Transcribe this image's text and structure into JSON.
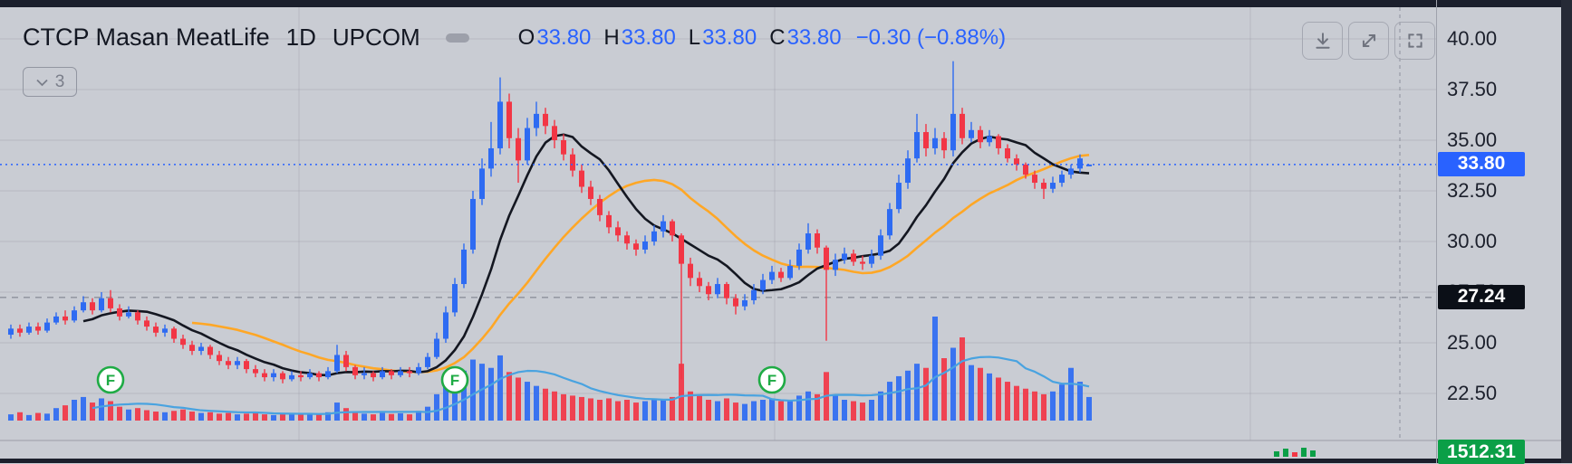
{
  "header": {
    "symbol": "CTCP Masan MeatLife",
    "interval": "1D",
    "exchange": "UPCOM",
    "ohlc": {
      "o_label": "O",
      "o": "33.80",
      "h_label": "H",
      "h": "33.80",
      "l_label": "L",
      "l": "33.80",
      "c_label": "C",
      "c": "33.80",
      "change": "−0.30 (−0.88%)"
    },
    "indicators_toggle": {
      "count": "3"
    }
  },
  "toolbar": {
    "buttons": [
      "download",
      "maximize",
      "fullscreen"
    ]
  },
  "price_axis": {
    "labels": [
      "40.00",
      "37.50",
      "35.00",
      "32.50",
      "30.00",
      "27.50",
      "25.00",
      "22.50"
    ],
    "tick_prices": [
      40,
      37.5,
      35,
      32.5,
      30,
      27.5,
      25,
      22.5
    ],
    "last_price_badge": {
      "text": "33.80",
      "color": "#2962ff"
    },
    "prev_close_badge": {
      "text": "27.24",
      "color": "#0b0f17"
    },
    "volume_badge": {
      "text": "1512.31",
      "color": "#0b9f47"
    }
  },
  "chart_data": {
    "type": "candlestick",
    "title": "CTCP Masan MeatLife 1D UPCOM",
    "ylim": [
      22.3,
      40.2
    ],
    "grid": true,
    "last_price": 33.8,
    "prev_close_level": 27.24,
    "colors": {
      "up": "#2e6bf2",
      "down": "#f23645",
      "ma_fast": "#141721",
      "ma_slow": "#ffa726",
      "vol_ma": "#49a3e0",
      "last_price_line": "#2962ff",
      "prev_close_line": "#8d919c",
      "marker_green": "#1fab45",
      "grid_line": "rgba(140,143,155,0.30)"
    },
    "ma_fast_period": 9,
    "ma_slow_period": 21,
    "vol_ma_period": 10,
    "markers": [
      {
        "index": 11,
        "label": "F"
      },
      {
        "index": 49,
        "label": "F"
      },
      {
        "index": 84,
        "label": "F"
      }
    ],
    "candles": [
      [
        25.4,
        25.9,
        25.2,
        25.7
      ],
      [
        25.7,
        25.9,
        25.3,
        25.5
      ],
      [
        25.5,
        26.0,
        25.4,
        25.8
      ],
      [
        25.8,
        26.0,
        25.4,
        25.6
      ],
      [
        25.6,
        26.2,
        25.5,
        26.0
      ],
      [
        26.0,
        26.5,
        25.9,
        26.3
      ],
      [
        26.3,
        26.6,
        25.9,
        26.1
      ],
      [
        26.1,
        26.8,
        26.0,
        26.6
      ],
      [
        26.6,
        27.3,
        26.5,
        27.0
      ],
      [
        27.0,
        27.2,
        26.4,
        26.6
      ],
      [
        26.6,
        27.5,
        26.5,
        27.2
      ],
      [
        27.2,
        27.6,
        26.5,
        26.7
      ],
      [
        26.7,
        26.9,
        26.1,
        26.3
      ],
      [
        26.3,
        26.8,
        26.2,
        26.5
      ],
      [
        26.5,
        26.6,
        25.9,
        26.1
      ],
      [
        26.1,
        26.3,
        25.6,
        25.8
      ],
      [
        25.8,
        26.0,
        25.3,
        25.5
      ],
      [
        25.5,
        25.9,
        25.3,
        25.7
      ],
      [
        25.7,
        25.8,
        25.0,
        25.2
      ],
      [
        25.2,
        25.4,
        24.7,
        24.9
      ],
      [
        24.9,
        25.1,
        24.4,
        24.6
      ],
      [
        24.6,
        25.0,
        24.4,
        24.8
      ],
      [
        24.8,
        24.9,
        24.2,
        24.4
      ],
      [
        24.4,
        24.6,
        23.9,
        24.1
      ],
      [
        24.1,
        24.3,
        23.7,
        23.9
      ],
      [
        23.9,
        24.3,
        23.7,
        24.1
      ],
      [
        24.1,
        24.2,
        23.5,
        23.7
      ],
      [
        23.7,
        23.9,
        23.3,
        23.5
      ],
      [
        23.5,
        23.7,
        23.1,
        23.3
      ],
      [
        23.3,
        23.7,
        23.1,
        23.5
      ],
      [
        23.5,
        23.6,
        23.0,
        23.2
      ],
      [
        23.2,
        23.6,
        23.1,
        23.4
      ],
      [
        23.4,
        23.6,
        23.1,
        23.3
      ],
      [
        23.3,
        23.7,
        23.2,
        23.5
      ],
      [
        23.5,
        23.6,
        23.1,
        23.3
      ],
      [
        23.3,
        23.8,
        23.2,
        23.6
      ],
      [
        23.6,
        24.9,
        23.5,
        24.4
      ],
      [
        24.4,
        24.6,
        23.6,
        23.8
      ],
      [
        23.8,
        23.9,
        23.2,
        23.4
      ],
      [
        23.4,
        23.8,
        23.2,
        23.5
      ],
      [
        23.5,
        23.6,
        23.1,
        23.3
      ],
      [
        23.3,
        23.8,
        23.2,
        23.6
      ],
      [
        23.6,
        23.7,
        23.2,
        23.4
      ],
      [
        23.4,
        23.8,
        23.3,
        23.6
      ],
      [
        23.6,
        23.8,
        23.3,
        23.5
      ],
      [
        23.5,
        24.0,
        23.4,
        23.8
      ],
      [
        23.8,
        24.5,
        23.7,
        24.3
      ],
      [
        24.3,
        25.5,
        24.2,
        25.2
      ],
      [
        25.2,
        26.8,
        25.0,
        26.5
      ],
      [
        26.5,
        28.2,
        26.3,
        27.9
      ],
      [
        27.9,
        29.9,
        27.7,
        29.6
      ],
      [
        29.6,
        32.5,
        29.4,
        32.1
      ],
      [
        32.1,
        34.1,
        31.8,
        33.6
      ],
      [
        33.6,
        35.9,
        33.2,
        34.6
      ],
      [
        34.6,
        38.1,
        34.3,
        36.9
      ],
      [
        36.9,
        37.3,
        34.6,
        35.1
      ],
      [
        35.1,
        35.6,
        32.9,
        34.0
      ],
      [
        34.0,
        36.1,
        33.8,
        35.6
      ],
      [
        35.6,
        36.9,
        35.2,
        36.3
      ],
      [
        36.3,
        36.6,
        35.3,
        35.7
      ],
      [
        35.7,
        36.0,
        34.6,
        35.0
      ],
      [
        35.0,
        35.3,
        34.0,
        34.3
      ],
      [
        34.3,
        34.6,
        33.2,
        33.5
      ],
      [
        33.5,
        33.8,
        32.4,
        32.7
      ],
      [
        32.7,
        33.0,
        31.8,
        32.1
      ],
      [
        32.1,
        32.3,
        31.0,
        31.3
      ],
      [
        31.3,
        31.5,
        30.4,
        30.7
      ],
      [
        30.7,
        31.0,
        30.0,
        30.3
      ],
      [
        30.3,
        30.5,
        29.6,
        29.9
      ],
      [
        29.9,
        30.1,
        29.3,
        29.6
      ],
      [
        29.6,
        30.3,
        29.4,
        30.0
      ],
      [
        30.0,
        30.8,
        29.8,
        30.5
      ],
      [
        30.5,
        31.3,
        30.2,
        31.0
      ],
      [
        31.0,
        31.1,
        30.0,
        30.3
      ],
      [
        30.3,
        30.4,
        23.2,
        28.9
      ],
      [
        28.9,
        29.2,
        27.8,
        28.2
      ],
      [
        28.2,
        28.5,
        27.5,
        27.8
      ],
      [
        27.8,
        28.0,
        27.1,
        27.4
      ],
      [
        27.4,
        28.2,
        27.2,
        27.9
      ],
      [
        27.9,
        28.0,
        26.9,
        27.2
      ],
      [
        27.2,
        27.4,
        26.4,
        26.8
      ],
      [
        26.8,
        27.4,
        26.6,
        27.1
      ],
      [
        27.1,
        27.9,
        26.9,
        27.6
      ],
      [
        27.6,
        28.4,
        27.4,
        28.1
      ],
      [
        28.1,
        28.8,
        27.9,
        28.5
      ],
      [
        28.5,
        28.7,
        28.0,
        28.2
      ],
      [
        28.2,
        29.1,
        28.1,
        28.8
      ],
      [
        28.8,
        29.9,
        28.6,
        29.6
      ],
      [
        29.6,
        30.9,
        29.4,
        30.4
      ],
      [
        30.4,
        30.6,
        29.4,
        29.7
      ],
      [
        29.7,
        29.8,
        25.1,
        28.6
      ],
      [
        28.6,
        29.4,
        28.3,
        29.1
      ],
      [
        29.1,
        29.7,
        28.9,
        29.4
      ],
      [
        29.4,
        29.6,
        28.8,
        29.0
      ],
      [
        29.0,
        29.3,
        28.6,
        28.9
      ],
      [
        28.9,
        29.6,
        28.7,
        29.3
      ],
      [
        29.3,
        30.6,
        29.1,
        30.3
      ],
      [
        30.3,
        31.9,
        30.1,
        31.6
      ],
      [
        31.6,
        33.3,
        31.4,
        32.9
      ],
      [
        32.9,
        34.5,
        32.6,
        34.1
      ],
      [
        34.1,
        36.3,
        33.9,
        35.4
      ],
      [
        35.4,
        35.8,
        34.2,
        34.6
      ],
      [
        34.6,
        35.6,
        34.3,
        35.1
      ],
      [
        35.1,
        35.4,
        34.1,
        34.5
      ],
      [
        34.5,
        38.9,
        34.2,
        36.3
      ],
      [
        36.3,
        36.6,
        34.8,
        35.1
      ],
      [
        35.1,
        35.9,
        34.9,
        35.5
      ],
      [
        35.5,
        35.7,
        34.6,
        34.9
      ],
      [
        34.9,
        35.5,
        34.7,
        35.2
      ],
      [
        35.2,
        35.3,
        34.3,
        34.6
      ],
      [
        34.6,
        34.8,
        33.9,
        34.1
      ],
      [
        34.1,
        34.3,
        33.5,
        33.8
      ],
      [
        33.8,
        33.9,
        33.1,
        33.3
      ],
      [
        33.3,
        33.5,
        32.6,
        32.9
      ],
      [
        32.9,
        33.1,
        32.1,
        32.6
      ],
      [
        32.6,
        33.2,
        32.4,
        32.9
      ],
      [
        32.9,
        33.5,
        32.7,
        33.3
      ],
      [
        33.3,
        33.8,
        33.1,
        33.6
      ],
      [
        33.6,
        34.3,
        33.4,
        34.1
      ],
      [
        33.8,
        33.8,
        33.8,
        33.8
      ]
    ],
    "volumes": [
      90,
      120,
      80,
      110,
      100,
      180,
      220,
      300,
      340,
      260,
      320,
      280,
      200,
      160,
      180,
      150,
      130,
      120,
      140,
      160,
      130,
      110,
      120,
      100,
      110,
      90,
      100,
      110,
      90,
      80,
      100,
      90,
      110,
      95,
      85,
      120,
      260,
      180,
      110,
      100,
      90,
      110,
      95,
      105,
      90,
      140,
      200,
      380,
      520,
      650,
      720,
      880,
      820,
      760,
      940,
      700,
      620,
      560,
      500,
      460,
      420,
      380,
      360,
      340,
      320,
      300,
      320,
      280,
      300,
      260,
      280,
      320,
      300,
      340,
      820,
      420,
      360,
      300,
      280,
      320,
      260,
      240,
      280,
      300,
      320,
      280,
      300,
      360,
      420,
      380,
      700,
      360,
      300,
      280,
      260,
      300,
      420,
      560,
      640,
      720,
      820,
      760,
      1500,
      900,
      1050,
      1200,
      800,
      760,
      680,
      620,
      560,
      500,
      460,
      420,
      380,
      420,
      520,
      760,
      560,
      340
    ],
    "sub_pane_ticks": [
      {
        "dx": 0,
        "h": 6,
        "dir": "up"
      },
      {
        "dx": 10,
        "h": 9,
        "dir": "up"
      },
      {
        "dx": 20,
        "h": 5,
        "dir": "down"
      },
      {
        "dx": 30,
        "h": 10,
        "dir": "up"
      },
      {
        "dx": 40,
        "h": 7,
        "dir": "up"
      }
    ]
  }
}
